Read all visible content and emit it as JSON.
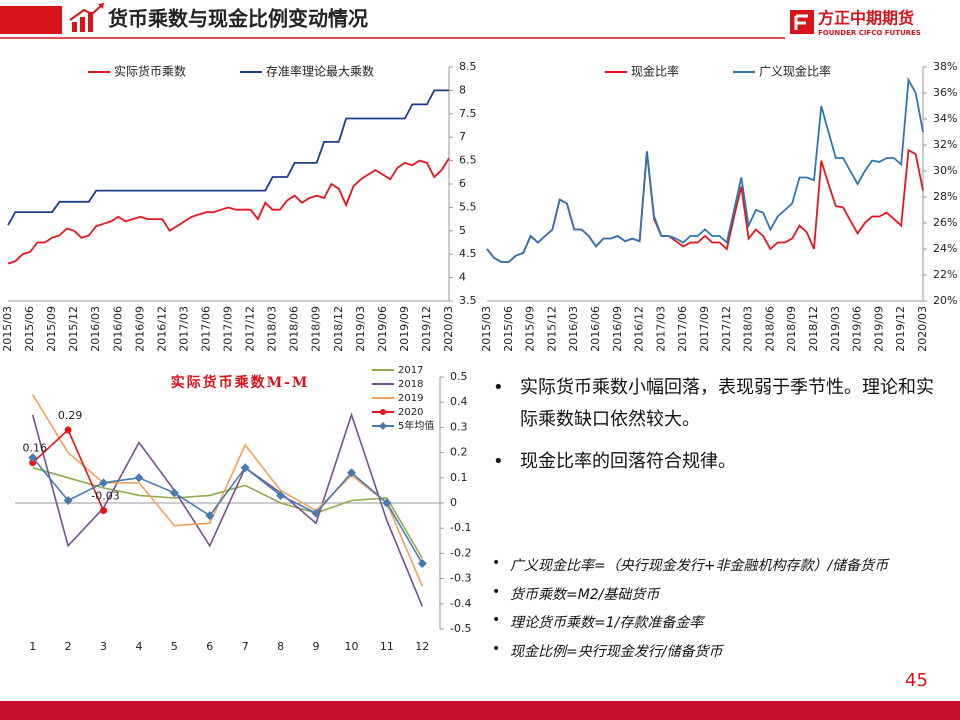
{
  "header": {
    "title": "货币乘数与现金比例变动情况",
    "logo": "方正中期期货",
    "logo_sub": "FOUNDER CIFCO FUTURES"
  },
  "chart_data": [
    {
      "type": "line",
      "yaxis_side": "right",
      "legend": "top",
      "categories": [
        "2015/03",
        null,
        null,
        "2015/06",
        null,
        null,
        "2015/09",
        null,
        null,
        "2015/12",
        null,
        null,
        "2016/03",
        null,
        null,
        "2016/06",
        null,
        null,
        "2016/09",
        null,
        null,
        "2016/12",
        null,
        null,
        "2017/03",
        null,
        null,
        "2017/06",
        null,
        null,
        "2017/09",
        null,
        null,
        "2017/12",
        null,
        null,
        "2018/03",
        null,
        null,
        "2018/06",
        null,
        null,
        "2018/09",
        null,
        null,
        "2018/12",
        null,
        null,
        "2019/03",
        null,
        null,
        "2019/06",
        null,
        null,
        "2019/09",
        null,
        null,
        "2019/12",
        null,
        null,
        "2020/03"
      ],
      "series": [
        {
          "name": "实际货币乘数",
          "color": "#e8141b",
          "values": [
            4.3,
            4.35,
            4.5,
            4.55,
            4.75,
            4.75,
            4.85,
            4.9,
            5.05,
            5.0,
            4.85,
            4.9,
            5.1,
            5.15,
            5.2,
            5.3,
            5.2,
            5.25,
            5.3,
            5.25,
            5.25,
            5.25,
            5.0,
            5.1,
            5.2,
            5.3,
            5.35,
            5.4,
            5.4,
            5.45,
            5.5,
            5.45,
            5.45,
            5.45,
            5.25,
            5.6,
            5.45,
            5.45,
            5.65,
            5.75,
            5.6,
            5.7,
            5.75,
            5.7,
            6.0,
            5.9,
            5.55,
            5.95,
            6.1,
            6.2,
            6.3,
            6.2,
            6.1,
            6.35,
            6.45,
            6.4,
            6.5,
            6.45,
            6.15,
            6.3,
            6.55
          ]
        },
        {
          "name": "存准率理论最大乘数",
          "color": "#1c3c8c",
          "values": [
            5.12,
            5.4,
            5.4,
            5.4,
            5.4,
            5.4,
            5.4,
            5.62,
            5.62,
            5.62,
            5.62,
            5.62,
            5.86,
            5.86,
            5.86,
            5.86,
            5.86,
            5.86,
            5.86,
            5.86,
            5.86,
            5.86,
            5.86,
            5.86,
            5.86,
            5.86,
            5.86,
            5.86,
            5.86,
            5.86,
            5.86,
            5.86,
            5.86,
            5.86,
            5.86,
            5.86,
            6.15,
            6.15,
            6.15,
            6.45,
            6.45,
            6.45,
            6.45,
            6.9,
            6.9,
            6.9,
            7.4,
            7.4,
            7.4,
            7.4,
            7.4,
            7.4,
            7.4,
            7.4,
            7.4,
            7.7,
            7.7,
            7.7,
            8.0,
            8.0,
            8.0
          ]
        }
      ],
      "ylim": [
        3.5,
        8.5
      ],
      "yticks": [
        3.5,
        4,
        4.5,
        5,
        5.5,
        6,
        6.5,
        7,
        7.5,
        8,
        8.5
      ],
      "grid": false
    },
    {
      "type": "line",
      "yaxis_side": "right",
      "legend": "top",
      "categories": [
        "2015/03",
        null,
        null,
        "2015/06",
        null,
        null,
        "2015/09",
        null,
        null,
        "2015/12",
        null,
        null,
        "2016/03",
        null,
        null,
        "2016/06",
        null,
        null,
        "2016/09",
        null,
        null,
        "2016/12",
        null,
        null,
        "2017/03",
        null,
        null,
        "2017/06",
        null,
        null,
        "2017/09",
        null,
        null,
        "2017/12",
        null,
        null,
        "2018/03",
        null,
        null,
        "2018/06",
        null,
        null,
        "2018/09",
        null,
        null,
        "2018/12",
        null,
        null,
        "2019/03",
        null,
        null,
        "2019/06",
        null,
        null,
        "2019/09",
        null,
        null,
        "2019/12",
        null,
        null,
        "2020/03"
      ],
      "series": [
        {
          "name": "现金比率",
          "color": "#e8141b",
          "values": [
            24,
            23.3,
            23.0,
            23.0,
            23.5,
            23.7,
            25.0,
            24.5,
            25.0,
            25.5,
            27.8,
            27.5,
            25.5,
            25.5,
            25.0,
            24.2,
            24.8,
            24.8,
            25.0,
            24.6,
            24.8,
            24.6,
            31.5,
            26.3,
            25.0,
            25.0,
            24.6,
            24.2,
            24.5,
            24.5,
            25.0,
            24.5,
            24.5,
            24.0,
            26.5,
            28.8,
            24.8,
            25.5,
            25.0,
            24.0,
            24.5,
            24.5,
            24.8,
            25.8,
            25.3,
            24.0,
            30.8,
            29.0,
            27.3,
            27.2,
            26.2,
            25.2,
            26.0,
            26.5,
            26.5,
            26.8,
            26.3,
            25.8,
            31.6,
            31.3,
            28.5
          ]
        },
        {
          "name": "广义现金比率",
          "color": "#2e75b6",
          "values": [
            24,
            23.3,
            23.0,
            23.0,
            23.5,
            23.7,
            25.0,
            24.5,
            25.0,
            25.5,
            27.8,
            27.5,
            25.5,
            25.5,
            25.0,
            24.2,
            24.8,
            24.8,
            25.0,
            24.6,
            24.8,
            24.6,
            31.5,
            26.5,
            25.0,
            25.0,
            24.8,
            24.5,
            25.0,
            25.0,
            25.5,
            25.0,
            25.0,
            24.5,
            27.0,
            29.5,
            25.8,
            27.0,
            26.8,
            25.5,
            26.5,
            27.0,
            27.5,
            29.5,
            29.5,
            29.3,
            35.0,
            33.0,
            31.0,
            31.0,
            30.0,
            29.0,
            30.0,
            30.8,
            30.7,
            31.0,
            31.0,
            30.5,
            37.0,
            36.0,
            33.0
          ]
        }
      ],
      "ylim": [
        20,
        38
      ],
      "yticks": [
        {
          "value": 20,
          "label": "20%"
        },
        {
          "value": 22,
          "label": "22%"
        },
        {
          "value": 24,
          "label": "24%"
        },
        {
          "value": 26,
          "label": "26%"
        },
        {
          "value": 28,
          "label": "28%"
        },
        {
          "value": 30,
          "label": "30%"
        },
        {
          "value": 32,
          "label": "32%"
        },
        {
          "value": 34,
          "label": "34%"
        },
        {
          "value": 36,
          "label": "36%"
        },
        {
          "value": 38,
          "label": "38%"
        }
      ],
      "grid": false
    },
    {
      "type": "line",
      "title": "实际货币乘数M-M",
      "yaxis_side": "right",
      "legend": "top-right",
      "categories": [
        "1",
        "2",
        "3",
        "4",
        "5",
        "6",
        "7",
        "8",
        "9",
        "10",
        "11",
        "12"
      ],
      "series": [
        {
          "name": "2017",
          "color": "#8faa4a",
          "values": [
            0.14,
            0.1,
            0.06,
            0.03,
            0.02,
            0.03,
            0.07,
            0.0,
            -0.04,
            0.01,
            0.02,
            -0.22
          ]
        },
        {
          "name": "2018",
          "color": "#75508f",
          "values": [
            0.35,
            -0.17,
            -0.02,
            0.24,
            0.05,
            -0.17,
            0.14,
            0.04,
            -0.08,
            0.35,
            -0.07,
            -0.41
          ]
        },
        {
          "name": "2019",
          "color": "#f3a15a",
          "values": [
            0.43,
            0.2,
            0.08,
            0.08,
            -0.09,
            -0.08,
            0.23,
            0.05,
            -0.03,
            0.11,
            0.0,
            -0.33
          ]
        },
        {
          "name": "2020",
          "color": "#e8141b",
          "marker": "circle",
          "data_labels": true,
          "values": [
            0.16,
            0.29,
            -0.03,
            null,
            null,
            null,
            null,
            null,
            null,
            null,
            null,
            null
          ]
        },
        {
          "name": "5年均值",
          "color": "#4a7ab0",
          "marker": "diamond",
          "values": [
            0.18,
            0.01,
            0.08,
            0.1,
            0.04,
            -0.05,
            0.14,
            0.03,
            -0.04,
            0.12,
            0.0,
            -0.24
          ]
        }
      ],
      "ylim": [
        -0.5,
        0.5
      ],
      "yticks": [
        -0.5,
        -0.4,
        -0.3,
        -0.2,
        -0.1,
        0,
        0.1,
        0.2,
        0.3,
        0.4,
        0.5
      ],
      "grid": false
    }
  ],
  "bullets": [
    "实际货币乘数小幅回落，表现弱于季节性。理论和实际乘数缺口依然较大。",
    "现金比率的回落符合规律。"
  ],
  "notes": [
    "广义现金比率=（央行现金发行+非金融机构存款）/储备货币",
    "货币乘数=M2/基础货币",
    "理论货币乘数=1/存款准备金率",
    "现金比例=央行现金发行/储备货币"
  ],
  "page_number": 45
}
